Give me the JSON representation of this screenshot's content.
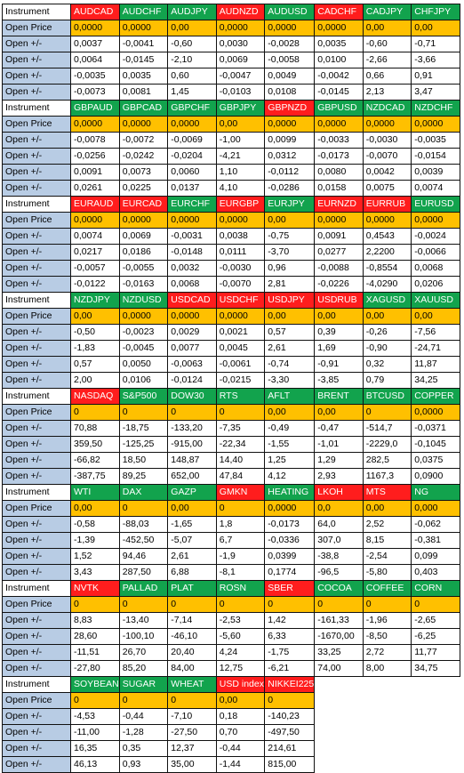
{
  "colors": {
    "red": "#ff1d1d",
    "green": "#12a34d",
    "price": "#ffc000",
    "label": "#b8cce4"
  },
  "labels": {
    "instrument": "Instrument",
    "open_price": "Open Price",
    "open_delta": "Open +/-"
  },
  "blocks": [
    {
      "instruments": [
        {
          "name": "AUDCAD",
          "color": "red"
        },
        {
          "name": "AUDCHF",
          "color": "green"
        },
        {
          "name": "AUDJPY",
          "color": "green"
        },
        {
          "name": "AUDNZD",
          "color": "red"
        },
        {
          "name": "AUDUSD",
          "color": "green"
        },
        {
          "name": "CADCHF",
          "color": "red"
        },
        {
          "name": "CADJPY",
          "color": "green"
        },
        {
          "name": "CHFJPY",
          "color": "green"
        }
      ],
      "open_price": [
        "0,0000",
        "0,0000",
        "0,00",
        "0,0000",
        "0,0000",
        "0,0000",
        "0,00",
        "0,00"
      ],
      "rows": [
        [
          "0,0037",
          "-0,0041",
          "-0,60",
          "0,0030",
          "-0,0028",
          "0,0035",
          "-0,60",
          "-0,71"
        ],
        [
          "0,0064",
          "-0,0145",
          "-2,10",
          "0,0069",
          "-0,0058",
          "0,0100",
          "-2,66",
          "-3,66"
        ],
        [
          "-0,0035",
          "0,0035",
          "0,60",
          "-0,0047",
          "0,0049",
          "-0,0042",
          "0,66",
          "0,91"
        ],
        [
          "-0,0073",
          "0,0081",
          "1,45",
          "-0,0103",
          "0,0108",
          "-0,0145",
          "2,13",
          "3,47"
        ]
      ]
    },
    {
      "instruments": [
        {
          "name": "GBPAUD",
          "color": "green"
        },
        {
          "name": "GBPCAD",
          "color": "green"
        },
        {
          "name": "GBPCHF",
          "color": "green"
        },
        {
          "name": "GBPJPY",
          "color": "green"
        },
        {
          "name": "GBPNZD",
          "color": "red"
        },
        {
          "name": "GBPUSD",
          "color": "green"
        },
        {
          "name": "NZDCAD",
          "color": "green"
        },
        {
          "name": "NZDCHF",
          "color": "green"
        }
      ],
      "open_price": [
        "0,0000",
        "0,0000",
        "0,0000",
        "0,00",
        "0,0000",
        "0,0000",
        "0,0000",
        "0,0000"
      ],
      "rows": [
        [
          "-0,0078",
          "-0,0072",
          "-0,0069",
          "-1,00",
          "0,0099",
          "-0,0033",
          "-0,0030",
          "-0,0035"
        ],
        [
          "-0,0256",
          "-0,0242",
          "-0,0204",
          "-4,21",
          "0,0312",
          "-0,0173",
          "-0,0070",
          "-0,0154"
        ],
        [
          "0,0091",
          "0,0073",
          "0,0060",
          "1,10",
          "-0,0112",
          "0,0080",
          "0,0042",
          "0,0039"
        ],
        [
          "0,0261",
          "0,0225",
          "0,0137",
          "4,10",
          "-0,0286",
          "0,0158",
          "0,0075",
          "0,0074"
        ]
      ]
    },
    {
      "instruments": [
        {
          "name": "EURAUD",
          "color": "red"
        },
        {
          "name": "EURCAD",
          "color": "red"
        },
        {
          "name": "EURCHF",
          "color": "green"
        },
        {
          "name": "EURGBP",
          "color": "red"
        },
        {
          "name": "EURJPY",
          "color": "green"
        },
        {
          "name": "EURNZD",
          "color": "red"
        },
        {
          "name": "EURRUB",
          "color": "red"
        },
        {
          "name": "EURUSD",
          "color": "green"
        }
      ],
      "open_price": [
        "0,0000",
        "0,0000",
        "0,0000",
        "0,0000",
        "0,00",
        "0,0000",
        "0,0000",
        "0,0000"
      ],
      "rows": [
        [
          "0,0074",
          "0,0069",
          "-0,0031",
          "0,0038",
          "-0,75",
          "0,0091",
          "0,4543",
          "-0,0024"
        ],
        [
          "0,0217",
          "0,0186",
          "-0,0148",
          "0,0111",
          "-3,70",
          "0,0277",
          "2,2200",
          "-0,0066"
        ],
        [
          "-0,0057",
          "-0,0055",
          "0,0032",
          "-0,0030",
          "0,96",
          "-0,0088",
          "-0,8554",
          "0,0068"
        ],
        [
          "-0,0122",
          "-0,0163",
          "0,0068",
          "-0,0070",
          "2,81",
          "-0,0226",
          "-4,0290",
          "0,0206"
        ]
      ]
    },
    {
      "instruments": [
        {
          "name": "NZDJPY",
          "color": "green"
        },
        {
          "name": "NZDUSD",
          "color": "green"
        },
        {
          "name": "USDCAD",
          "color": "red"
        },
        {
          "name": "USDCHF",
          "color": "red"
        },
        {
          "name": "USDJPY",
          "color": "red"
        },
        {
          "name": "USDRUB",
          "color": "red"
        },
        {
          "name": "XAGUSD",
          "color": "green"
        },
        {
          "name": "XAUUSD",
          "color": "green"
        }
      ],
      "open_price": [
        "0,00",
        "0,0000",
        "0,0000",
        "0,0000",
        "0,00",
        "0,00",
        "0,00",
        "0,00"
      ],
      "rows": [
        [
          "-0,50",
          "-0,0023",
          "0,0029",
          "0,0021",
          "0,57",
          "0,39",
          "-0,26",
          "-7,56"
        ],
        [
          "-1,83",
          "-0,0045",
          "0,0077",
          "0,0045",
          "2,61",
          "1,69",
          "-0,90",
          "-24,71"
        ],
        [
          "0,57",
          "0,0050",
          "-0,0063",
          "-0,0061",
          "-0,74",
          "-0,91",
          "0,32",
          "11,87"
        ],
        [
          "2,00",
          "0,0106",
          "-0,0124",
          "-0,0215",
          "-3,30",
          "-3,85",
          "0,79",
          "34,25"
        ]
      ]
    },
    {
      "instruments": [
        {
          "name": "NASDAQ",
          "color": "red"
        },
        {
          "name": "S&P500",
          "color": "green"
        },
        {
          "name": "DOW30",
          "color": "green"
        },
        {
          "name": "RTS",
          "color": "green"
        },
        {
          "name": "AFLT",
          "color": "green"
        },
        {
          "name": "BRENT",
          "color": "green"
        },
        {
          "name": "BTCUSD",
          "color": "green"
        },
        {
          "name": "COPPER",
          "color": "green"
        }
      ],
      "open_price": [
        "0",
        "0",
        "0",
        "0",
        "0,00",
        "0,00",
        "0",
        "0,0000"
      ],
      "rows": [
        [
          "70,88",
          "-18,75",
          "-133,20",
          "-7,35",
          "-0,49",
          "-0,47",
          "-514,7",
          "-0,0371"
        ],
        [
          "359,50",
          "-125,25",
          "-915,00",
          "-22,34",
          "-1,55",
          "-1,01",
          "-2229,0",
          "-0,1045"
        ],
        [
          "-66,82",
          "18,50",
          "148,87",
          "14,40",
          "1,25",
          "1,29",
          "282,5",
          "0,0375"
        ],
        [
          "-387,75",
          "89,25",
          "652,00",
          "47,84",
          "4,12",
          "2,93",
          "1167,3",
          "0,0900"
        ]
      ]
    },
    {
      "instruments": [
        {
          "name": "WTI",
          "color": "green"
        },
        {
          "name": "DAX",
          "color": "green"
        },
        {
          "name": "GAZP",
          "color": "green"
        },
        {
          "name": "GMKN",
          "color": "red"
        },
        {
          "name": "HEATING",
          "color": "green"
        },
        {
          "name": "LKOH",
          "color": "red"
        },
        {
          "name": "MTS",
          "color": "red"
        },
        {
          "name": "NG",
          "color": "green"
        }
      ],
      "open_price": [
        "0,00",
        "0",
        "0,00",
        "0",
        "0,0000",
        "0,0",
        "0,00",
        "0,000"
      ],
      "rows": [
        [
          "-0,58",
          "-88,03",
          "-1,65",
          "1,8",
          "-0,0173",
          "64,0",
          "2,52",
          "-0,062"
        ],
        [
          "-1,39",
          "-452,50",
          "-5,07",
          "6,7",
          "-0,0336",
          "307,0",
          "8,15",
          "-0,381"
        ],
        [
          "1,52",
          "94,46",
          "2,61",
          "-1,9",
          "0,0399",
          "-38,8",
          "-2,54",
          "0,099"
        ],
        [
          "3,43",
          "287,50",
          "6,88",
          "-8,1",
          "0,1774",
          "-96,5",
          "-5,80",
          "0,403"
        ]
      ]
    },
    {
      "instruments": [
        {
          "name": "NVTK",
          "color": "red"
        },
        {
          "name": "PALLAD",
          "color": "green"
        },
        {
          "name": "PLAT",
          "color": "green"
        },
        {
          "name": "ROSN",
          "color": "green"
        },
        {
          "name": "SBER",
          "color": "red"
        },
        {
          "name": "COCOA",
          "color": "green"
        },
        {
          "name": "COFFEE",
          "color": "green"
        },
        {
          "name": "CORN",
          "color": "green"
        }
      ],
      "open_price": [
        "0",
        "0",
        "0",
        "0",
        "0",
        "0",
        "0",
        "0"
      ],
      "rows": [
        [
          "8,83",
          "-13,40",
          "-7,14",
          "-2,53",
          "1,42",
          "-161,33",
          "-1,96",
          "-2,65"
        ],
        [
          "28,60",
          "-100,10",
          "-46,10",
          "-5,60",
          "6,33",
          "-1670,00",
          "-8,50",
          "-6,25"
        ],
        [
          "-11,51",
          "26,70",
          "20,40",
          "4,24",
          "-1,75",
          "33,25",
          "2,72",
          "11,77"
        ],
        [
          "-27,80",
          "85,20",
          "84,00",
          "12,75",
          "-6,21",
          "74,00",
          "8,00",
          "34,75"
        ]
      ]
    },
    {
      "instruments": [
        {
          "name": "SOYBEAN",
          "color": "green"
        },
        {
          "name": "SUGAR",
          "color": "green"
        },
        {
          "name": "WHEAT",
          "color": "green"
        },
        {
          "name": "USD index",
          "color": "red"
        },
        {
          "name": "NIKKEI225",
          "color": "red"
        }
      ],
      "open_price": [
        "0",
        "0",
        "0",
        "0,00",
        "0"
      ],
      "rows": [
        [
          "-4,53",
          "-0,44",
          "-7,10",
          "0,18",
          "-140,23"
        ],
        [
          "-11,00",
          "-1,28",
          "-27,50",
          "0,70",
          "-497,50"
        ],
        [
          "16,35",
          "0,35",
          "12,37",
          "-0,44",
          "214,61"
        ],
        [
          "46,13",
          "0,93",
          "35,00",
          "-1,44",
          "815,00"
        ]
      ]
    }
  ]
}
